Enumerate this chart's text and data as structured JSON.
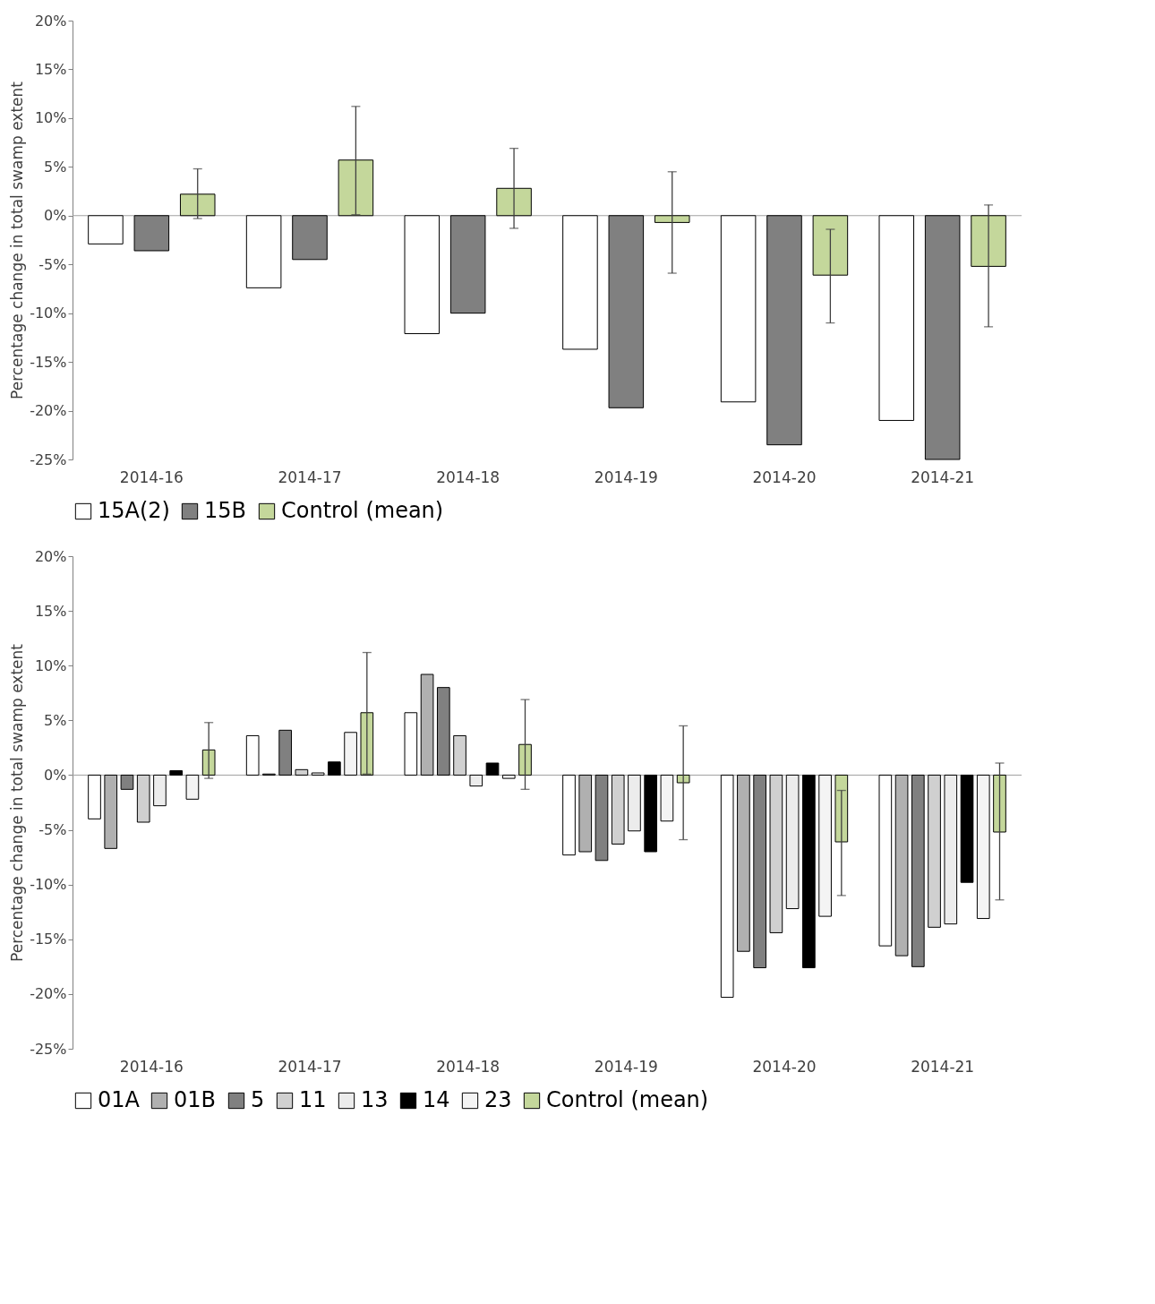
{
  "chart_data": [
    {
      "type": "bar",
      "ylabel": "Percentage change in total swamp extent",
      "categories": [
        "2014-16",
        "2014-17",
        "2014-18",
        "2014-19",
        "2014-20",
        "2014-21"
      ],
      "ylim": [
        -25,
        20
      ],
      "yticks": [
        {
          "value": 20,
          "label": "20%"
        },
        {
          "value": 15,
          "label": "15%"
        },
        {
          "value": 10,
          "label": "10%"
        },
        {
          "value": 5,
          "label": "5%"
        },
        {
          "value": 0,
          "label": "0%"
        },
        {
          "value": -5,
          "label": "-5%"
        },
        {
          "value": -10,
          "label": "-10%"
        },
        {
          "value": -15,
          "label": "-15%"
        },
        {
          "value": -20,
          "label": "-20%"
        },
        {
          "value": -25,
          "label": "-25%"
        }
      ],
      "grid": false,
      "legend": "bottom",
      "ref_lines": [
        {
          "axis": "y",
          "value": 0,
          "color": "#a0a0a0"
        }
      ],
      "series": [
        {
          "name": "15A(2)",
          "color": "#ffffff",
          "values": [
            -2.9,
            -7.4,
            -12.1,
            -13.7,
            -19.1,
            -21.0
          ]
        },
        {
          "name": "15B",
          "color": "#808080",
          "values": [
            -3.6,
            -4.5,
            -10.0,
            -19.7,
            -23.5,
            -25.0
          ]
        },
        {
          "name": "Control (mean)",
          "color": "#c4d79b",
          "values": [
            2.2,
            5.7,
            2.8,
            -0.7,
            -6.1,
            -5.2
          ],
          "errors": [
            [
              -0.3,
              4.8
            ],
            [
              0.1,
              11.2
            ],
            [
              -1.3,
              6.9
            ],
            [
              -5.9,
              4.5
            ],
            [
              -11.0,
              -1.4
            ],
            [
              -11.4,
              1.1
            ]
          ]
        }
      ]
    },
    {
      "type": "bar",
      "ylabel": "Percentage change in total swamp extent",
      "categories": [
        "2014-16",
        "2014-17",
        "2014-18",
        "2014-19",
        "2014-20",
        "2014-21"
      ],
      "ylim": [
        -25,
        20
      ],
      "yticks": [
        {
          "value": 20,
          "label": "20%"
        },
        {
          "value": 15,
          "label": "15%"
        },
        {
          "value": 10,
          "label": "10%"
        },
        {
          "value": 5,
          "label": "5%"
        },
        {
          "value": 0,
          "label": "0%"
        },
        {
          "value": -5,
          "label": "-5%"
        },
        {
          "value": -10,
          "label": "-10%"
        },
        {
          "value": -15,
          "label": "-15%"
        },
        {
          "value": -20,
          "label": "-20%"
        },
        {
          "value": -25,
          "label": "-25%"
        }
      ],
      "grid": false,
      "legend": "bottom",
      "ref_lines": [
        {
          "axis": "y",
          "value": 0,
          "color": "#a0a0a0"
        }
      ],
      "series": [
        {
          "name": "01A",
          "color": "#ffffff",
          "values": [
            -4.0,
            3.6,
            5.7,
            -7.3,
            -20.3,
            -15.6
          ]
        },
        {
          "name": "01B",
          "color": "#b0b0b0",
          "values": [
            -6.7,
            0.1,
            9.2,
            -7.0,
            -16.1,
            -16.5
          ]
        },
        {
          "name": "5",
          "color": "#808080",
          "values": [
            -1.3,
            4.1,
            8.0,
            -7.8,
            -17.6,
            -17.5
          ]
        },
        {
          "name": "11",
          "color": "#d0d0d0",
          "values": [
            -4.3,
            0.5,
            3.6,
            -6.3,
            -14.4,
            -13.9
          ]
        },
        {
          "name": "13",
          "color": "#ececec",
          "values": [
            -2.8,
            0.2,
            -1.0,
            -5.1,
            -12.2,
            -13.6
          ]
        },
        {
          "name": "14",
          "color": "#000000",
          "values": [
            0.4,
            1.2,
            1.1,
            -7.0,
            -17.6,
            -9.8
          ]
        },
        {
          "name": "23",
          "color": "#f4f4f4",
          "values": [
            -2.2,
            3.9,
            -0.3,
            -4.2,
            -12.9,
            -13.1
          ]
        },
        {
          "name": "Control (mean)",
          "color": "#c4d79b",
          "values": [
            2.3,
            5.7,
            2.8,
            -0.7,
            -6.1,
            -5.2
          ],
          "errors": [
            [
              -0.3,
              4.8
            ],
            [
              0.1,
              11.2
            ],
            [
              -1.3,
              6.9
            ],
            [
              -5.9,
              4.5
            ],
            [
              -11.0,
              -1.4
            ],
            [
              -11.4,
              1.1
            ]
          ]
        }
      ]
    }
  ]
}
